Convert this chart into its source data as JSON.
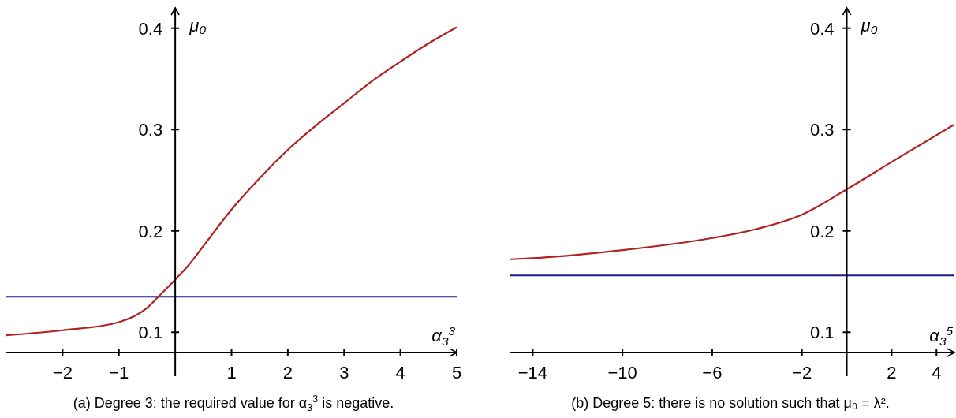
{
  "chart_data": [
    {
      "type": "line",
      "xlabel": "α$_{3}$$^{3}$",
      "ylabel": "μ₀",
      "xlim": [
        -3,
        5
      ],
      "ylim": [
        0.08,
        0.42
      ],
      "xticks": [
        -2,
        -1,
        1,
        2,
        3,
        4,
        5
      ],
      "yticks": [
        0.1,
        0.2,
        0.3,
        0.4
      ],
      "grid": false,
      "series": [
        {
          "color": "#b22222",
          "x": [
            -3,
            -2,
            -1,
            -0.5,
            -0.3,
            0,
            0.25,
            0.5,
            1,
            1.5,
            2,
            2.5,
            3,
            3.5,
            4,
            4.5,
            5
          ],
          "values": [
            0.097,
            0.102,
            0.11,
            0.124,
            0.135,
            0.152,
            0.167,
            0.185,
            0.221,
            0.252,
            0.28,
            0.304,
            0.326,
            0.348,
            0.367,
            0.385,
            0.401
          ]
        }
      ],
      "ref_lines": [
        {
          "axis": "y",
          "value": 0.135,
          "color": "#1a1a8c"
        }
      ],
      "annotations": [
        "(a)  Degree 3: the required value for α$_{3}$$^{3}$ is negative."
      ]
    },
    {
      "type": "line",
      "xlabel": "α$_{3}$$^{5}$",
      "ylabel": "μ₀",
      "xlim": [
        -15,
        4.8
      ],
      "ylim": [
        0.08,
        0.42
      ],
      "xticks": [
        -14,
        -10,
        -6,
        -2,
        2,
        4
      ],
      "yticks": [
        0.1,
        0.2,
        0.3,
        0.4
      ],
      "grid": false,
      "series": [
        {
          "color": "#b22222",
          "x": [
            -15,
            -14,
            -10,
            -6,
            -4,
            -2,
            0,
            2,
            4.8
          ],
          "values": [
            0.172,
            0.173,
            0.181,
            0.193,
            0.202,
            0.216,
            0.241,
            0.268,
            0.305
          ]
        }
      ],
      "ref_lines": [
        {
          "axis": "y",
          "value": 0.156,
          "color": "#1a1a8c"
        }
      ],
      "annotations": [
        "(b)  Degree 5: there is no solution such that μ₀ = λ²."
      ]
    }
  ]
}
